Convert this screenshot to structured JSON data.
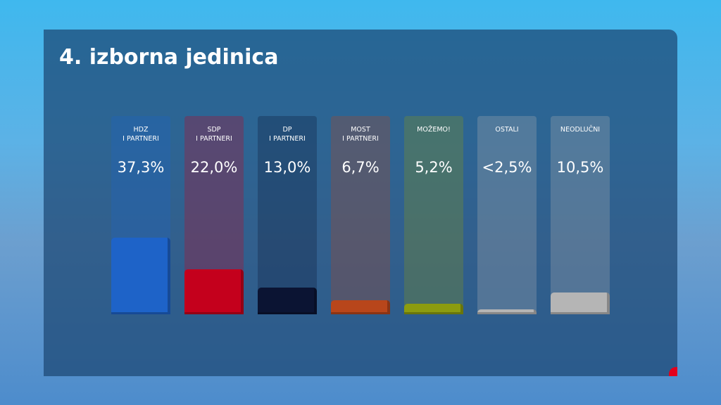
{
  "chart_data": {
    "type": "bar",
    "title": "4. izborna jedinica",
    "categories": [
      "HDZ\nI PARTNERI",
      "SDP\nI PARTNERI",
      "DP\nI PARTNERI",
      "MOST\nI PARTNERI",
      "MOŽEMO!",
      "OSTALI",
      "NEODLUČNI"
    ],
    "values": [
      37.3,
      22.0,
      13.0,
      6.7,
      5.2,
      2.5,
      10.5
    ],
    "value_labels": [
      "37,3%",
      "22,0%",
      "13,0%",
      "6,7%",
      "5,2%",
      "<2,5%",
      "10,5%"
    ],
    "colors": [
      "#1e63c8",
      "#c4001c",
      "#0b1433",
      "#b8461b",
      "#8c9c0f",
      "#b5b5b5",
      "#b5b5b5"
    ]
  }
}
